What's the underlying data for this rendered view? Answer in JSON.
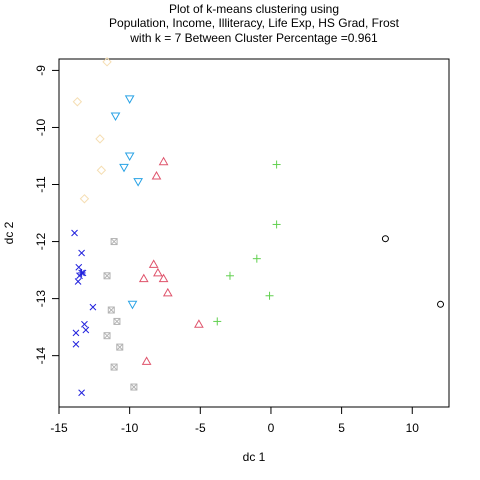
{
  "chart_data": {
    "type": "scatter",
    "title_lines": [
      "Plot of k-means clustering using",
      "Population, Income, Illiteracy, Life Exp, HS Grad, Frost",
      "with  k = 7 Between Cluster Percentage =0.961"
    ],
    "xlabel": "dc 1",
    "ylabel": "dc 2",
    "xlim": [
      -15,
      12.6
    ],
    "ylim": [
      -14.9,
      -8.8
    ],
    "xticks": [
      -15,
      -10,
      -5,
      0,
      5,
      10
    ],
    "yticks": [
      -9,
      -10,
      -11,
      -12,
      -13,
      -14
    ],
    "tick_labels_x": [
      "-15",
      "-10",
      "-5",
      "0",
      "5",
      "10"
    ],
    "tick_labels_y": [
      "-9",
      "-10",
      "-11",
      "-12",
      "-13",
      "-14"
    ],
    "grid": false,
    "series": [
      {
        "cluster": 1,
        "marker": "circle",
        "color": "#000000",
        "points": [
          [
            8.1,
            -11.95
          ],
          [
            12.0,
            -13.1
          ]
        ]
      },
      {
        "cluster": 2,
        "marker": "triangle-up",
        "color": "#df536b",
        "points": [
          [
            -7.6,
            -10.6
          ],
          [
            -8.1,
            -10.85
          ],
          [
            -8.3,
            -12.4
          ],
          [
            -8.0,
            -12.55
          ],
          [
            -7.6,
            -12.65
          ],
          [
            -9.0,
            -12.65
          ],
          [
            -7.3,
            -12.9
          ],
          [
            -5.1,
            -13.45
          ],
          [
            -8.8,
            -14.1
          ]
        ]
      },
      {
        "cluster": 3,
        "marker": "plus",
        "color": "#61d04f",
        "points": [
          [
            0.4,
            -10.65
          ],
          [
            0.4,
            -11.7
          ],
          [
            -1.0,
            -12.3
          ],
          [
            -2.9,
            -12.6
          ],
          [
            -0.1,
            -12.95
          ],
          [
            -3.8,
            -13.4
          ]
        ]
      },
      {
        "cluster": 4,
        "marker": "x",
        "color": "#2222dd",
        "points": [
          [
            -13.9,
            -11.85
          ],
          [
            -13.4,
            -12.2
          ],
          [
            -13.6,
            -12.45
          ],
          [
            -13.3,
            -12.55
          ],
          [
            -13.55,
            -12.6
          ],
          [
            -13.65,
            -12.7
          ],
          [
            -12.6,
            -13.15
          ],
          [
            -13.2,
            -13.45
          ],
          [
            -13.1,
            -13.55
          ],
          [
            -13.8,
            -13.6
          ],
          [
            -13.8,
            -13.8
          ],
          [
            -13.4,
            -14.65
          ]
        ]
      },
      {
        "cluster": 4,
        "marker": "asterisk",
        "color": "#2222dd",
        "points": [
          [
            -13.4,
            -12.55
          ]
        ]
      },
      {
        "cluster": 5,
        "marker": "triangle-down",
        "color": "#28a2e5",
        "points": [
          [
            -10.0,
            -9.5
          ],
          [
            -11.0,
            -9.8
          ],
          [
            -10.0,
            -10.5
          ],
          [
            -10.4,
            -10.7
          ],
          [
            -9.4,
            -10.95
          ],
          [
            -9.8,
            -13.1
          ]
        ]
      },
      {
        "cluster": 6,
        "marker": "diamond",
        "color": "#f5deb3",
        "points": [
          [
            -11.6,
            -8.85
          ],
          [
            -13.7,
            -9.55
          ],
          [
            -12.1,
            -10.2
          ],
          [
            -12.0,
            -10.75
          ],
          [
            -13.2,
            -11.25
          ]
        ]
      },
      {
        "cluster": 7,
        "marker": "square-x",
        "color": "#b3b3b3",
        "points": [
          [
            -11.1,
            -12.0
          ],
          [
            -11.6,
            -12.6
          ],
          [
            -11.3,
            -13.2
          ],
          [
            -10.9,
            -13.4
          ],
          [
            -11.6,
            -13.65
          ],
          [
            -10.7,
            -13.85
          ],
          [
            -11.1,
            -14.2
          ],
          [
            -9.7,
            -14.55
          ]
        ]
      }
    ]
  }
}
